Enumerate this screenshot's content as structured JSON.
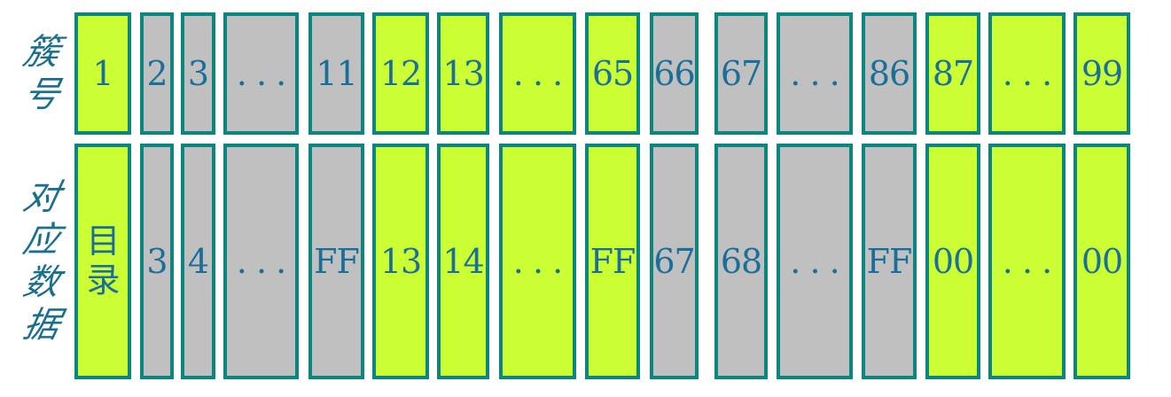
{
  "labels": {
    "cluster": [
      "簇",
      "号"
    ],
    "data": [
      "对",
      "应",
      "数",
      "据"
    ]
  },
  "colors": {
    "green": "#ccff33",
    "gray": "#c0c0c0",
    "border": "#0b8580",
    "text": "#1a6f9a"
  },
  "cells": [
    {
      "cluster": "1",
      "data": "目录",
      "color": "green"
    },
    {
      "cluster": "2",
      "data": "3",
      "color": "gray"
    },
    {
      "cluster": "3",
      "data": "4",
      "color": "gray"
    },
    {
      "cluster": ". . .",
      "data": ". . .",
      "color": "gray"
    },
    {
      "cluster": "11",
      "data": "FF",
      "color": "gray"
    },
    {
      "cluster": "12",
      "data": "13",
      "color": "green"
    },
    {
      "cluster": "13",
      "data": "14",
      "color": "green"
    },
    {
      "cluster": ". . .",
      "data": ". . .",
      "color": "green"
    },
    {
      "cluster": "65",
      "data": "FF",
      "color": "green"
    },
    {
      "cluster": "66",
      "data": "67",
      "color": "gray"
    },
    {
      "cluster": "67",
      "data": "68",
      "color": "gray"
    },
    {
      "cluster": ". . .",
      "data": ". . .",
      "color": "gray"
    },
    {
      "cluster": "86",
      "data": "FF",
      "color": "gray"
    },
    {
      "cluster": "87",
      "data": "00",
      "color": "green"
    },
    {
      "cluster": ". . .",
      "data": ". . .",
      "color": "green"
    },
    {
      "cluster": "99",
      "data": "00",
      "color": "green"
    }
  ]
}
